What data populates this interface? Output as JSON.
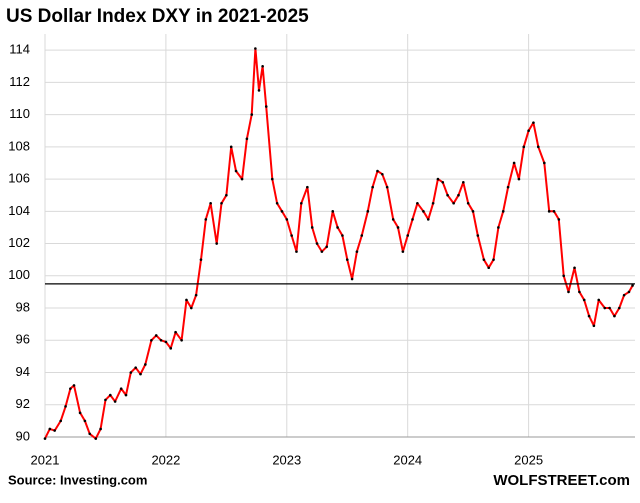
{
  "chart_data": {
    "type": "line",
    "title": "US Dollar Index DXY in 2021-2025",
    "source": "Source: Investing.com",
    "brand": "WOLFSTREET.com",
    "x": [
      2021.0,
      2021.04,
      2021.08,
      2021.13,
      2021.17,
      2021.21,
      2021.24,
      2021.29,
      2021.33,
      2021.37,
      2021.42,
      2021.46,
      2021.5,
      2021.54,
      2021.58,
      2021.63,
      2021.67,
      2021.71,
      2021.75,
      2021.79,
      2021.83,
      2021.88,
      2021.92,
      2021.96,
      2022.0,
      2022.04,
      2022.08,
      2022.13,
      2022.17,
      2022.21,
      2022.25,
      2022.29,
      2022.33,
      2022.37,
      2022.42,
      2022.46,
      2022.5,
      2022.54,
      2022.58,
      2022.63,
      2022.67,
      2022.71,
      2022.74,
      2022.77,
      2022.8,
      2022.83,
      2022.88,
      2022.92,
      2022.96,
      2023.0,
      2023.04,
      2023.08,
      2023.12,
      2023.17,
      2023.21,
      2023.25,
      2023.29,
      2023.33,
      2023.38,
      2023.42,
      2023.46,
      2023.5,
      2023.54,
      2023.58,
      2023.62,
      2023.67,
      2023.71,
      2023.75,
      2023.79,
      2023.83,
      2023.88,
      2023.92,
      2023.96,
      2024.0,
      2024.04,
      2024.08,
      2024.13,
      2024.17,
      2024.21,
      2024.25,
      2024.29,
      2024.33,
      2024.38,
      2024.42,
      2024.46,
      2024.5,
      2024.54,
      2024.58,
      2024.63,
      2024.67,
      2024.71,
      2024.75,
      2024.79,
      2024.83,
      2024.88,
      2024.92,
      2024.96,
      2025.0,
      2025.04,
      2025.08,
      2025.13,
      2025.17,
      2025.21,
      2025.25,
      2025.29,
      2025.33,
      2025.38,
      2025.42,
      2025.46,
      2025.5,
      2025.54,
      2025.58,
      2025.63,
      2025.67,
      2025.71,
      2025.75,
      2025.79,
      2025.83,
      2025.86
    ],
    "series": [
      {
        "name": "DXY",
        "color": "#ff0000",
        "values": [
          89.9,
          90.5,
          90.4,
          91.0,
          91.9,
          93.0,
          93.2,
          91.5,
          91.0,
          90.2,
          89.9,
          90.5,
          92.3,
          92.6,
          92.2,
          93.0,
          92.6,
          94.0,
          94.3,
          93.9,
          94.5,
          96.0,
          96.3,
          96.0,
          95.9,
          95.5,
          96.5,
          96.0,
          98.5,
          98.0,
          98.8,
          101.0,
          103.5,
          104.5,
          102.0,
          104.5,
          105.0,
          108.0,
          106.5,
          106.0,
          108.5,
          110.0,
          114.1,
          111.5,
          113.0,
          110.5,
          106.0,
          104.5,
          104.0,
          103.5,
          102.5,
          101.5,
          104.5,
          105.5,
          103.0,
          102.0,
          101.5,
          101.8,
          104.0,
          103.0,
          102.5,
          101.0,
          99.8,
          101.5,
          102.5,
          104.0,
          105.5,
          106.5,
          106.3,
          105.5,
          103.5,
          103.0,
          101.5,
          102.5,
          103.5,
          104.5,
          104.0,
          103.5,
          104.5,
          106.0,
          105.8,
          105.0,
          104.5,
          105.0,
          105.8,
          104.5,
          104.0,
          102.5,
          101.0,
          100.5,
          101.0,
          103.0,
          104.0,
          105.5,
          107.0,
          106.0,
          108.0,
          109.0,
          109.5,
          108.0,
          107.0,
          104.0,
          104.0,
          103.5,
          100.0,
          99.0,
          100.5,
          99.0,
          98.5,
          97.5,
          96.9,
          98.5,
          98.0,
          98.0,
          97.5,
          98.0,
          98.8,
          99.0,
          99.4
        ]
      }
    ],
    "hline": 99.5,
    "xlim": [
      2021,
      2025.88
    ],
    "xticks": [
      2021,
      2022,
      2023,
      2024,
      2025
    ],
    "ylim": [
      90,
      115
    ],
    "yticks": [
      90,
      92,
      94,
      96,
      98,
      100,
      102,
      104,
      106,
      108,
      110,
      112,
      114
    ],
    "grid": true
  }
}
